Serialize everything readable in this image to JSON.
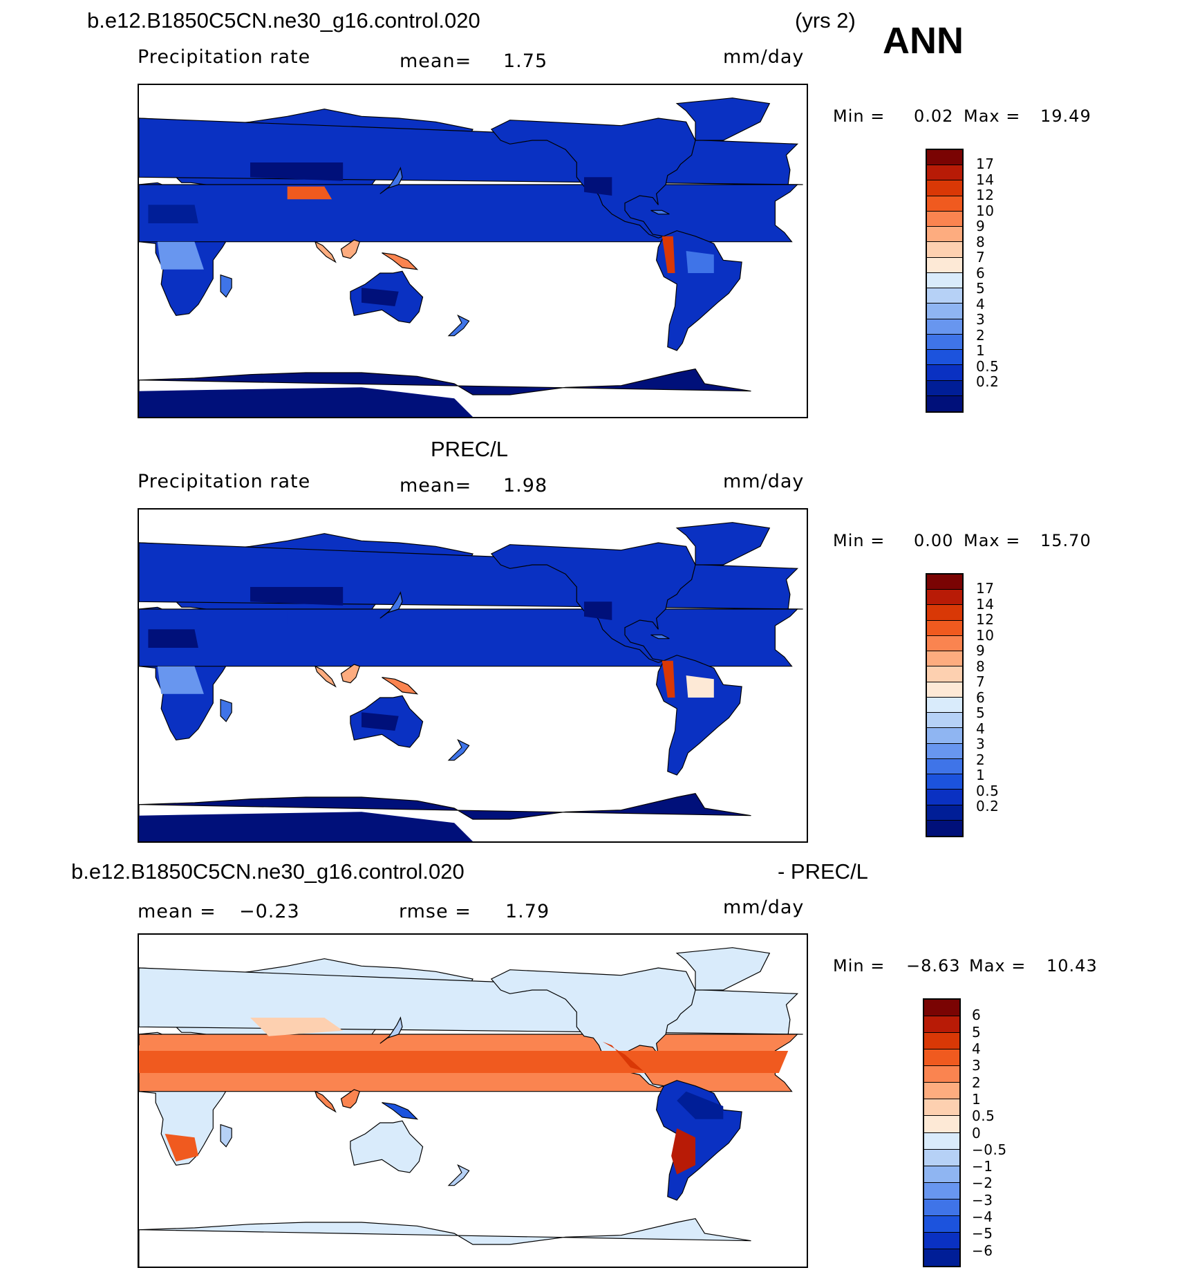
{
  "header": {
    "case_title": "b.e12.B1850C5CN.ne30_g16.control.020",
    "years": "(yrs 2)",
    "season": "ANN"
  },
  "panels": [
    {
      "id": "model",
      "title": "",
      "variable": "Precipitation rate",
      "stat_label": "mean=",
      "stat_value": "1.75",
      "units": "mm/day",
      "min_label": "Min =",
      "min_value": "0.02",
      "max_label": "Max =",
      "max_value": "19.49",
      "colorbar_labels": [
        "17",
        "14",
        "12",
        "10",
        "9",
        "8",
        "7",
        "6",
        "5",
        "4",
        "3",
        "2",
        "1",
        "0.5",
        "0.2"
      ],
      "colorbar_colors": [
        "#7a0403",
        "#b81b06",
        "#d93806",
        "#f05a1f",
        "#fa8450",
        "#fdac7f",
        "#fdd0b0",
        "#fde9d6",
        "#d9ebfb",
        "#b6d1f6",
        "#8fb5f2",
        "#6896ef",
        "#3f74e8",
        "#1c53dd",
        "#0a31c2",
        "#001e97",
        "#00107a"
      ],
      "scale": "nonuniform"
    },
    {
      "id": "obs",
      "title": "PREC/L",
      "variable": "Precipitation rate",
      "stat_label": "mean=",
      "stat_value": "1.98",
      "units": "mm/day",
      "min_label": "Min =",
      "min_value": "0.00",
      "max_label": "Max =",
      "max_value": "15.70",
      "colorbar_labels": [
        "17",
        "14",
        "12",
        "10",
        "9",
        "8",
        "7",
        "6",
        "5",
        "4",
        "3",
        "2",
        "1",
        "0.5",
        "0.2"
      ],
      "colorbar_colors": [
        "#7a0403",
        "#b81b06",
        "#d93806",
        "#f05a1f",
        "#fa8450",
        "#fdac7f",
        "#fdd0b0",
        "#fde9d6",
        "#d9ebfb",
        "#b6d1f6",
        "#8fb5f2",
        "#6896ef",
        "#3f74e8",
        "#1c53dd",
        "#0a31c2",
        "#001e97",
        "#00107a"
      ],
      "scale": "nonuniform"
    },
    {
      "id": "diff",
      "title_left": "b.e12.B1850C5CN.ne30_g16.control.020",
      "title_right": "- PREC/L",
      "stat_label": "mean =",
      "stat_value": "−0.23",
      "rmse_label": "rmse =",
      "rmse_value": "1.79",
      "units": "mm/day",
      "min_label": "Min =",
      "min_value": "−8.63",
      "max_label": "Max =",
      "max_value": "10.43",
      "colorbar_labels": [
        "6",
        "5",
        "4",
        "3",
        "2",
        "1",
        "0.5",
        "0",
        "−0.5",
        "−1",
        "−2",
        "−3",
        "−4",
        "−5",
        "−6"
      ],
      "colorbar_colors": [
        "#7a0403",
        "#b81b06",
        "#d93806",
        "#f05a1f",
        "#fa8450",
        "#fdac7f",
        "#fdd0b0",
        "#fde9d6",
        "#d9ebfb",
        "#b6d1f6",
        "#8fb5f2",
        "#6896ef",
        "#3f74e8",
        "#1c53dd",
        "#0a31c2",
        "#001e97"
      ],
      "scale": "diverging"
    }
  ],
  "map_projection": "cylindrical equidistant, centered 180E"
}
